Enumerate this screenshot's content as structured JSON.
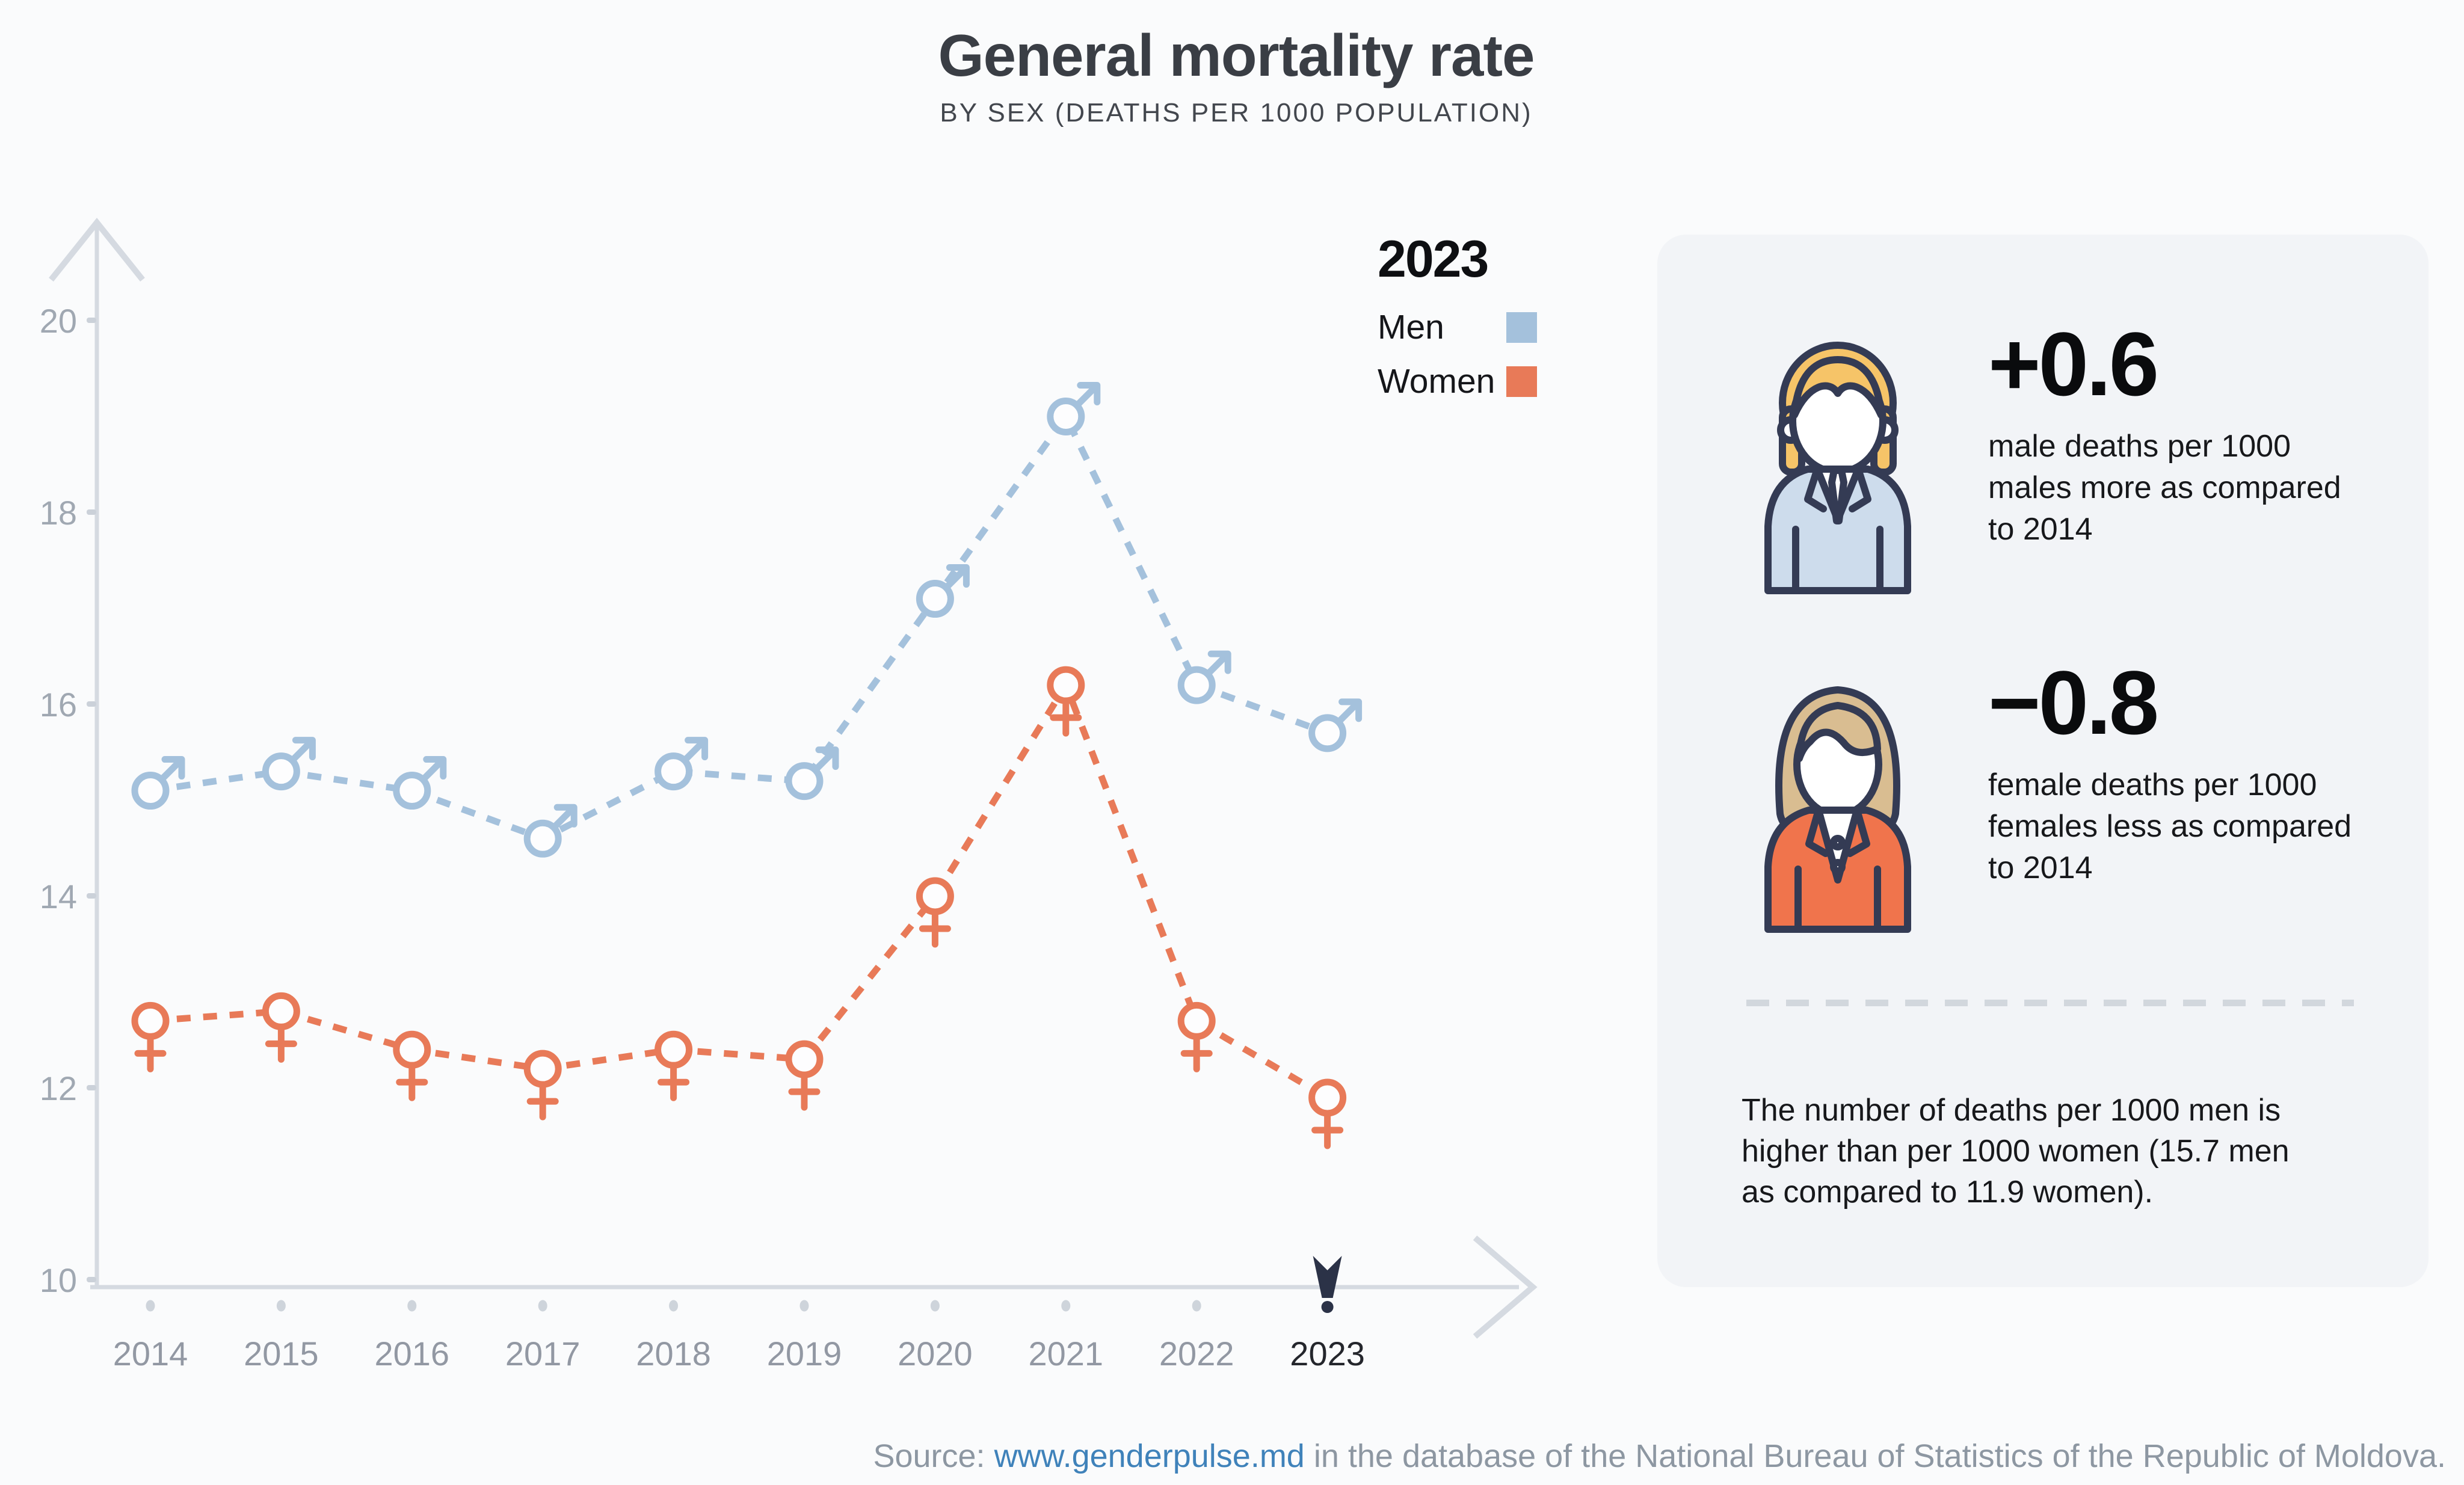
{
  "header": {
    "title": "General mortality rate",
    "subtitle": "BY SEX (DEATHS PER 1000 POPULATION)"
  },
  "legend": {
    "year": "2023",
    "items": [
      {
        "label": "Men",
        "color": "#a4c1dc"
      },
      {
        "label": "Women",
        "color": "#e87a58"
      }
    ]
  },
  "chart_data": {
    "type": "line",
    "line_style": "dashed",
    "grid": false,
    "x": [
      2014,
      2015,
      2016,
      2017,
      2018,
      2019,
      2020,
      2021,
      2022,
      2023
    ],
    "series": [
      {
        "name": "Men",
        "marker": "male",
        "color": "#a4c1dc",
        "values": [
          15.1,
          15.3,
          15.1,
          14.6,
          15.3,
          15.2,
          17.1,
          19.0,
          16.2,
          15.7
        ]
      },
      {
        "name": "Women",
        "marker": "female",
        "color": "#e87a58",
        "values": [
          12.7,
          12.8,
          12.4,
          12.2,
          12.4,
          12.3,
          14.0,
          16.2,
          12.7,
          11.9
        ]
      }
    ],
    "yticks": [
      10,
      12,
      14,
      16,
      18,
      20
    ],
    "ylim": [
      10,
      20.8
    ],
    "xlabel": "",
    "ylabel": "",
    "highlight_year": 2023,
    "legend_position": "top-right"
  },
  "panel": {
    "stats": [
      {
        "avatar": "man-avatar",
        "value": "+0.6",
        "lines": [
          "male deaths per 1000",
          "males more as compared",
          "to 2014"
        ]
      },
      {
        "avatar": "woman-avatar",
        "value": "−0.8",
        "lines": [
          "female deaths per 1000",
          "females less as compared",
          "to 2014"
        ]
      }
    ],
    "note_lines": [
      "The number of deaths per 1000 men is",
      "higher than per 1000 women (15.7 men",
      "as compared to 11.9 women)."
    ]
  },
  "source": {
    "prefix": "Source: ",
    "link": "www.genderpulse.md",
    "suffix": " in the database of the National Bureau of Statistics of the Republic of Moldova."
  },
  "colors": {
    "background": "#fafbfc",
    "panel": "#f2f4f7",
    "axis": "#d5dae1",
    "tick_dash": "#cbd1d9",
    "axis_dot": "#ced4db",
    "y_label": "#a0a8b2",
    "x_label": "#9298a3",
    "x_label_highlight": "#24262c",
    "pointer": "#2b3247",
    "marker_fill": "#fdfdfe",
    "link": "#3f82ba",
    "source_text": "#8d97a2"
  }
}
